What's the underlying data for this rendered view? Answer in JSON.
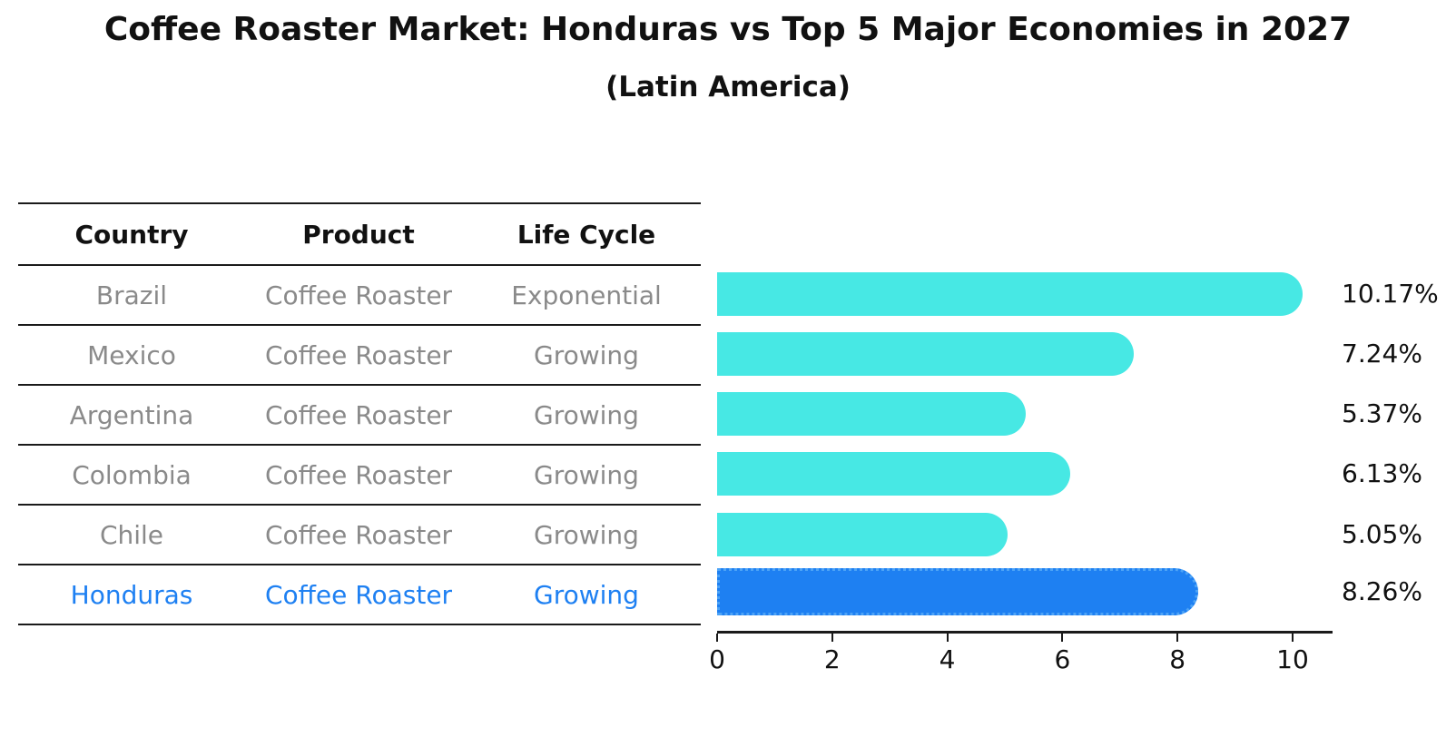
{
  "header": {
    "title": "Coffee Roaster Market: Honduras vs Top 5 Major Economies in 2027",
    "subtitle": "(Latin America)"
  },
  "table": {
    "headers": {
      "country": "Country",
      "product": "Product",
      "life_cycle": "Life Cycle"
    },
    "rows": [
      {
        "country": "Brazil",
        "product": "Coffee Roaster",
        "life_cycle": "Exponential"
      },
      {
        "country": "Mexico",
        "product": "Coffee Roaster",
        "life_cycle": "Growing"
      },
      {
        "country": "Argentina",
        "product": "Coffee Roaster",
        "life_cycle": "Growing"
      },
      {
        "country": "Colombia",
        "product": "Coffee Roaster",
        "life_cycle": "Growing"
      },
      {
        "country": "Chile",
        "product": "Coffee Roaster",
        "life_cycle": "Growing"
      },
      {
        "country": "Honduras",
        "product": "Coffee Roaster",
        "life_cycle": "Growing"
      }
    ]
  },
  "chart_data": {
    "type": "bar",
    "orientation": "horizontal",
    "title": "Coffee Roaster Market: Honduras vs Top 5 Major Economies in 2027",
    "subtitle": "(Latin America)",
    "categories": [
      "Brazil",
      "Mexico",
      "Argentina",
      "Colombia",
      "Chile",
      "Honduras"
    ],
    "values": [
      10.17,
      7.24,
      5.37,
      6.13,
      5.05,
      8.26
    ],
    "value_labels": [
      "10.17%",
      "7.24%",
      "5.37%",
      "6.13%",
      "5.05%",
      "8.26%"
    ],
    "x_ticks": [
      "0",
      "2",
      "4",
      "6",
      "8",
      "10"
    ],
    "x_tick_values": [
      0,
      2,
      4,
      6,
      8,
      10
    ],
    "xlim": [
      0,
      10.7
    ],
    "grid": false,
    "legend": false,
    "bar_color": "#47E8E4",
    "highlight_color": "#1E80F2",
    "highlight_index": 5,
    "highlight_border_style": "dotted"
  },
  "colors": {
    "bar_cyan": "#47E8E4",
    "bar_blue": "#1E80F2",
    "highlight_text": "#1E80F2",
    "table_text_gray": "#8A8A8A",
    "text_black": "#111111"
  }
}
